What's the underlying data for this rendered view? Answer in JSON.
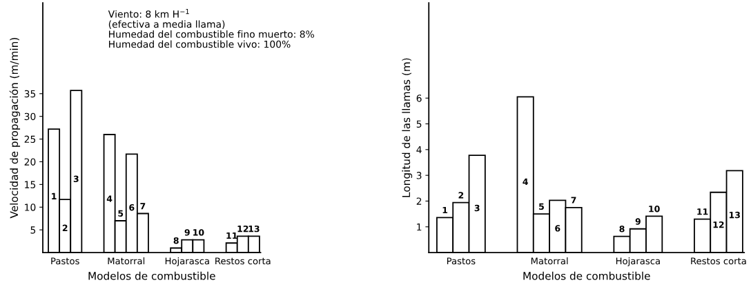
{
  "chart_data": [
    {
      "type": "bar",
      "ylabel": "Velocidad de propagación (m/min)",
      "xlabel": "Modelos de combustible",
      "categories": [
        "1",
        "2",
        "3",
        null,
        null,
        "4",
        "5",
        "6",
        "7",
        null,
        null,
        "8",
        "9",
        "10",
        null,
        null,
        "11",
        "12",
        "13"
      ],
      "values": [
        27.2,
        11.7,
        35.7,
        null,
        null,
        26.0,
        7.0,
        21.7,
        8.6,
        null,
        null,
        1.0,
        2.8,
        2.8,
        null,
        null,
        2.1,
        3.6,
        3.6
      ],
      "color": "#ffffff",
      "ylim": [
        0,
        55
      ],
      "yticks": [
        5,
        10,
        15,
        20,
        25,
        30,
        35
      ],
      "grid": false,
      "annotations": [
        "Viento: 8 km H$^{−1}$\n(efectiva a media llama)\nHumedad del combustible fino muerto: 8%\nHumedad del combustible vivo: 100%",
        "Pastos",
        "Matorral",
        "Hojarasca",
        "Restos corta"
      ]
    },
    {
      "type": "bar",
      "ylabel": "Longitud de las llamas (m)",
      "xlabel": "Modelos de combustible",
      "categories": [
        "1",
        "2",
        "3",
        null,
        null,
        "4",
        "5",
        "6",
        "7",
        null,
        null,
        "8",
        "9",
        "10",
        null,
        null,
        "11",
        "12",
        "13"
      ],
      "values": [
        1.36,
        1.94,
        3.78,
        null,
        null,
        6.05,
        1.5,
        2.03,
        1.75,
        null,
        null,
        0.63,
        0.92,
        1.41,
        null,
        null,
        1.3,
        2.34,
        3.18
      ],
      "color": "#ffffff",
      "ylim": [
        0,
        9.7
      ],
      "yticks": [
        1,
        2,
        3,
        4,
        5,
        6
      ],
      "grid": false,
      "annotations": [
        "Pastos",
        "Matorral",
        "Hojarasca",
        "Restos corta"
      ]
    }
  ]
}
